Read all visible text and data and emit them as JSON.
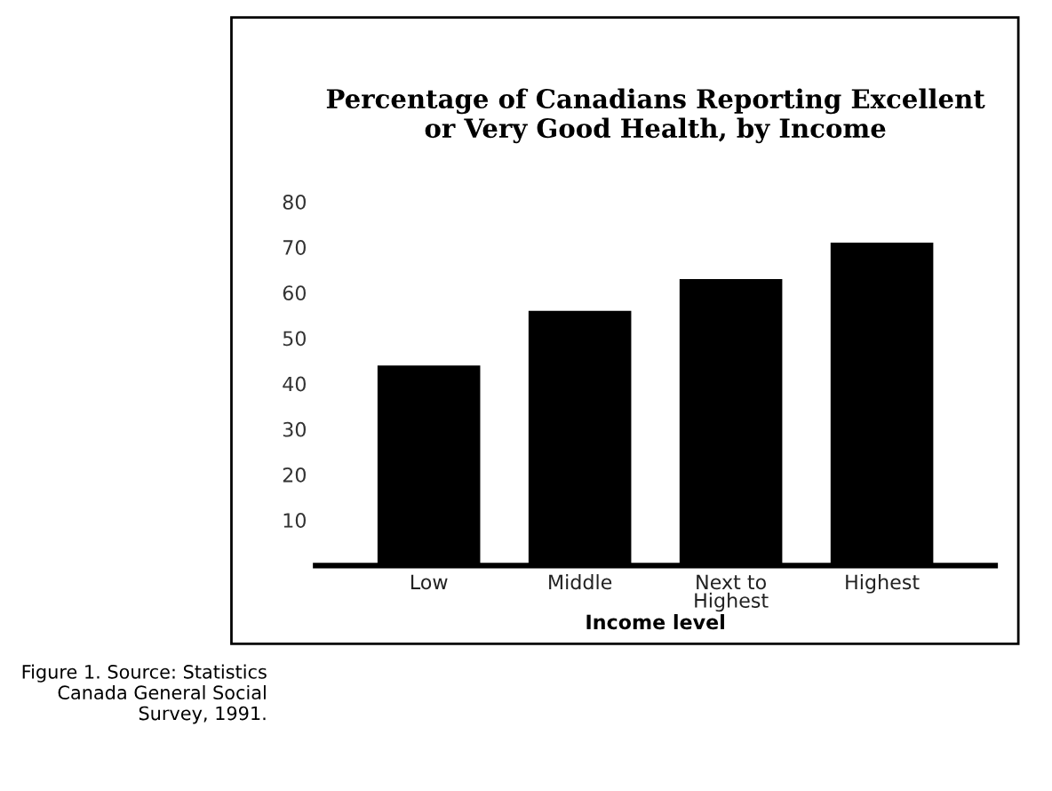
{
  "chart_data": {
    "type": "bar",
    "title": "Percentage of Canadians Reporting Excellent\nor Very Good Health, by Income",
    "categories": [
      "Low",
      "Middle",
      "Next to\nHighest",
      "Highest"
    ],
    "values": [
      44,
      56,
      63,
      71
    ],
    "color": "#000000",
    "xlabel": "Income level",
    "ylim": [
      0,
      80
    ],
    "yticks": [
      10,
      20,
      30,
      40,
      50,
      60,
      70,
      80
    ],
    "grid": false,
    "annotations": [
      "Figure 1. Source: Statistics\nCanada General Social\nSurvey, 1991."
    ]
  }
}
